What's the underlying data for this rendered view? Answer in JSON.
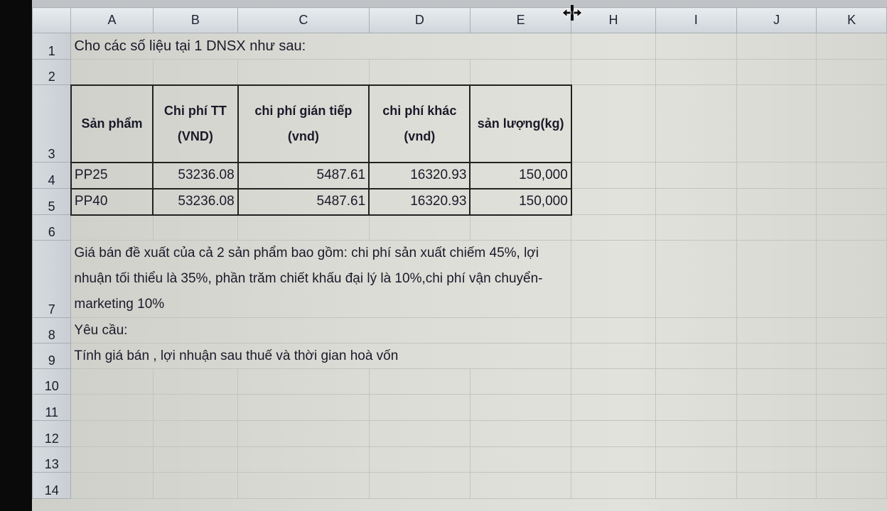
{
  "columns": [
    "A",
    "B",
    "C",
    "D",
    "E",
    "H",
    "I",
    "J",
    "K"
  ],
  "rows": [
    "1",
    "2",
    "3",
    "4",
    "5",
    "6",
    "7",
    "8",
    "9",
    "10",
    "11",
    "12",
    "13",
    "14"
  ],
  "title": "Cho các số liệu tại 1 DNSX như sau:",
  "table": {
    "headers": [
      "Sản phẩm",
      "Chi phí TT (VND)",
      "chi phí gián tiếp (vnd)",
      "chi phí khác (vnd)",
      "sản lượng(kg)"
    ],
    "rows": [
      [
        "PP25",
        "53236.08",
        "5487.61",
        "16320.93",
        "150,000"
      ],
      [
        "PP40",
        "53236.08",
        "5487.61",
        "16320.93",
        "150,000"
      ]
    ]
  },
  "note": "Giá bán đề xuất của cả 2 sản phẩm bao gồm: chi phí sản xuất chiếm 45%, lợi nhuận tối thiểu là 35%, phần trăm chiết khấu đại lý là 10%,chi phí vận chuyển- marketing 10%",
  "requirement_label": "Yêu cầu:",
  "requirement": "Tính giá bán  , lợi nhuận sau thuế và thời gian hoà vốn",
  "cursor_icon": "column-resize-cursor"
}
